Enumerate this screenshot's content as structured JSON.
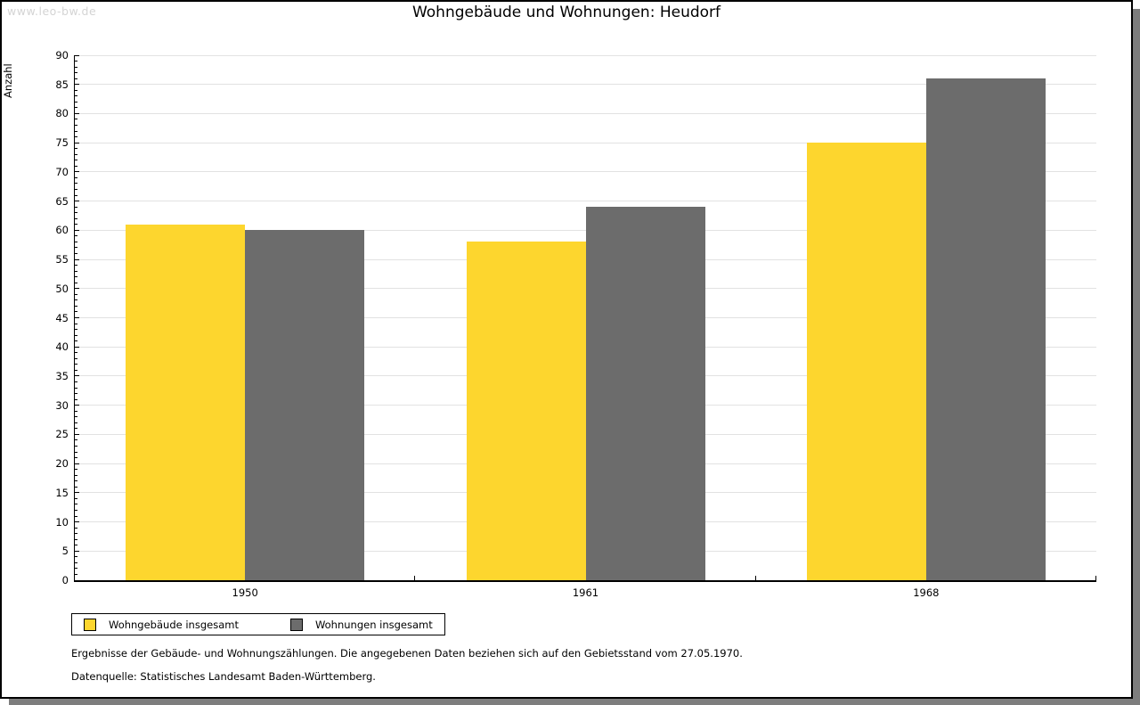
{
  "watermark": "www.leo-bw.de",
  "title": "Wohngebäude und Wohnungen: Heudorf",
  "chart_data": {
    "type": "bar",
    "title": "Wohngebäude und Wohnungen: Heudorf",
    "xlabel": "",
    "ylabel": "Anzahl",
    "categories": [
      "1950",
      "1961",
      "1968"
    ],
    "series": [
      {
        "name": "Wohngebäude insgesamt",
        "color": "#fdd62e",
        "values": [
          61,
          58,
          75
        ]
      },
      {
        "name": "Wohnungen insgesamt",
        "color": "#6c6c6c",
        "values": [
          60,
          64,
          86
        ]
      }
    ],
    "ylim": [
      0,
      90
    ],
    "ytick_step": 5,
    "ytick_minor_step": 1,
    "grid": true,
    "gridline_color": "#e2e2e2",
    "legend_position": "bottom-left"
  },
  "footnotes": [
    "Ergebnisse der Gebäude- und Wohnungszählungen. Die angegebenen Daten beziehen sich auf den Gebietsstand vom 27.05.1970.",
    "Datenquelle: Statistisches Landesamt Baden-Württemberg."
  ]
}
